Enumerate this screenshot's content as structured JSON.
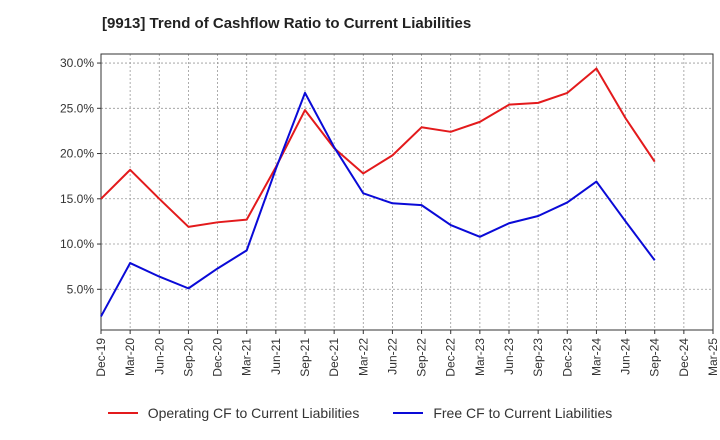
{
  "chart_data": {
    "type": "line",
    "title": "[9913]  Trend of Cashflow Ratio to Current Liabilities",
    "xlabel": "",
    "ylabel": "",
    "categories": [
      "Dec-19",
      "Mar-20",
      "Jun-20",
      "Sep-20",
      "Dec-20",
      "Mar-21",
      "Jun-21",
      "Sep-21",
      "Dec-21",
      "Mar-22",
      "Jun-22",
      "Sep-22",
      "Dec-22",
      "Mar-23",
      "Jun-23",
      "Sep-23",
      "Dec-23",
      "Mar-24",
      "Jun-24",
      "Sep-24",
      "Dec-24",
      "Mar-25"
    ],
    "ylim": [
      0.5,
      31.0
    ],
    "yticks": [
      5.0,
      10.0,
      15.0,
      20.0,
      25.0,
      30.0
    ],
    "ytick_labels": [
      "5.0%",
      "10.0%",
      "15.0%",
      "20.0%",
      "25.0%",
      "30.0%"
    ],
    "grid": true,
    "legend_position": "bottom",
    "series": [
      {
        "name": "Operating CF to Current Liabilities",
        "color": "#e31a1c",
        "values": [
          15.0,
          18.2,
          15.0,
          11.9,
          12.4,
          12.7,
          18.5,
          24.8,
          20.6,
          17.8,
          19.8,
          22.9,
          22.4,
          23.5,
          25.4,
          25.6,
          26.7,
          29.4,
          23.9,
          19.1,
          null,
          null
        ]
      },
      {
        "name": "Free CF to Current Liabilities",
        "color": "#0a0ad7",
        "values": [
          2.0,
          7.9,
          6.4,
          5.1,
          7.3,
          9.3,
          18.3,
          26.7,
          20.7,
          15.6,
          14.5,
          14.3,
          12.1,
          10.8,
          12.3,
          13.1,
          14.6,
          16.9,
          12.5,
          8.2,
          null,
          null
        ]
      }
    ]
  }
}
